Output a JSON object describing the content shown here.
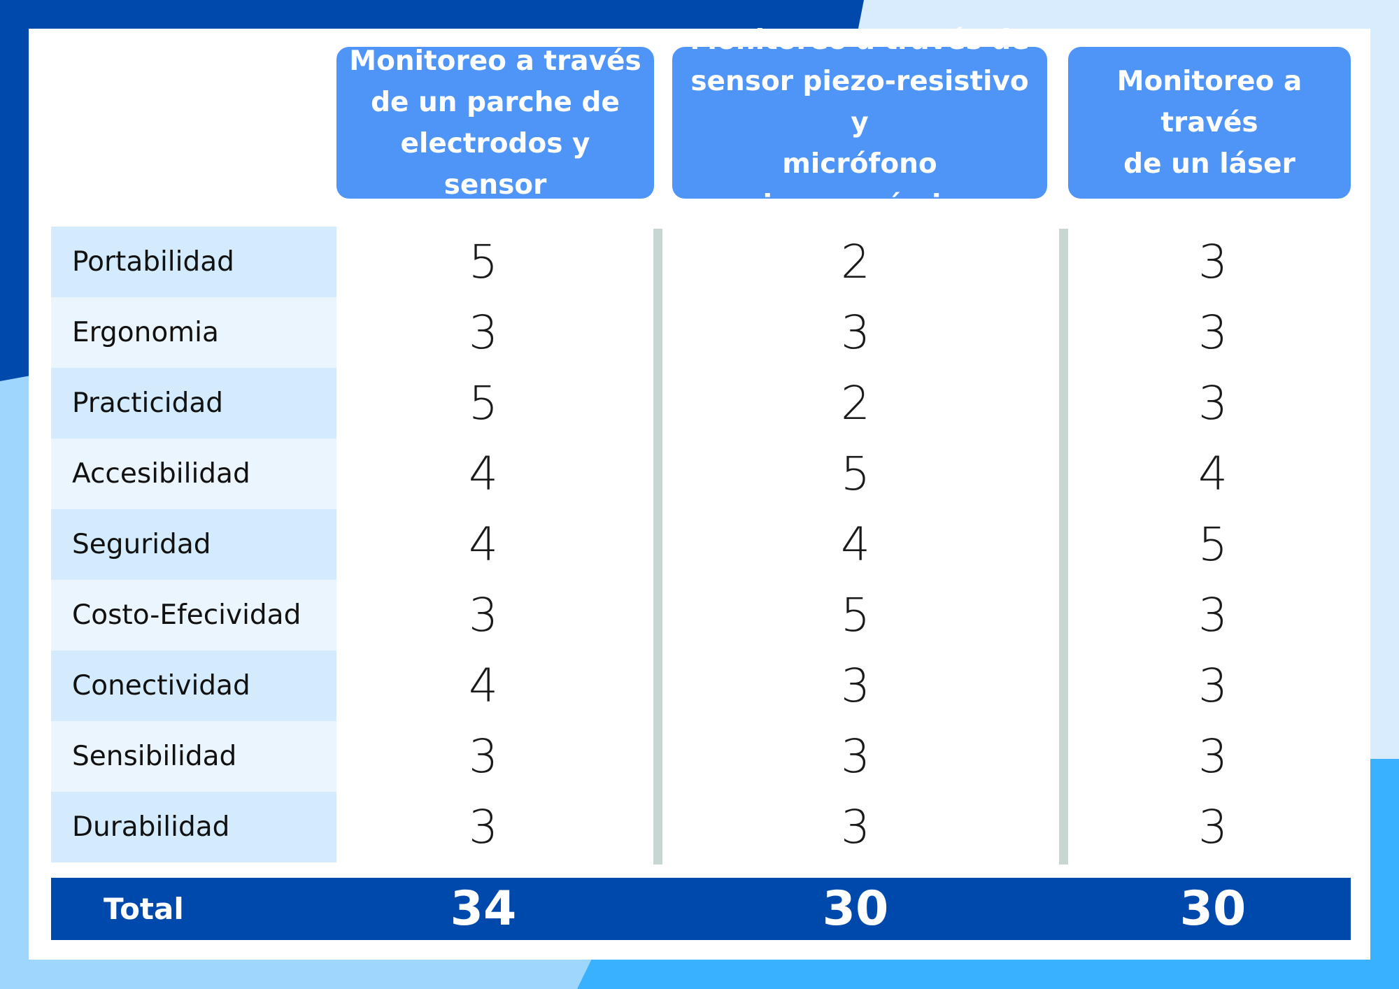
{
  "colors": {
    "background_dark": "#0049ac",
    "background_light": "#d8ecfe",
    "background_mid": "#9fd6fd",
    "background_accent": "#3ab1fc",
    "header": "#4f95f7",
    "label_odd": "#d3ebfd",
    "label_even": "#eaf5fe",
    "divider": "#c8d6d3",
    "total_bar": "#0049ac"
  },
  "table": {
    "headers": [
      "Monitoreo a través\nde un parche de\nelectrodos y sensor",
      "Monitoreo a través de\nsensor piezo-resistivo y\nmicrófono\npiezo-cerámico",
      "Monitoreo a\ntravés\nde un láser"
    ],
    "rows": [
      {
        "label": "Portabilidad",
        "values": [
          "5",
          "2",
          "3"
        ]
      },
      {
        "label": "Ergonomia",
        "values": [
          "3",
          "3",
          "3"
        ]
      },
      {
        "label": "Practicidad",
        "values": [
          "5",
          "2",
          "3"
        ]
      },
      {
        "label": "Accesibilidad",
        "values": [
          "4",
          "5",
          "4"
        ]
      },
      {
        "label": "Seguridad",
        "values": [
          "4",
          "4",
          "5"
        ]
      },
      {
        "label": "Costo-Efecividad",
        "values": [
          "3",
          "5",
          "3"
        ]
      },
      {
        "label": "Conectividad",
        "values": [
          "4",
          "3",
          "3"
        ]
      },
      {
        "label": "Sensibilidad",
        "values": [
          "3",
          "3",
          "3"
        ]
      },
      {
        "label": "Durabilidad",
        "values": [
          "3",
          "3",
          "3"
        ]
      }
    ],
    "total": {
      "label": "Total",
      "values": [
        "34",
        "30",
        "30"
      ]
    }
  }
}
